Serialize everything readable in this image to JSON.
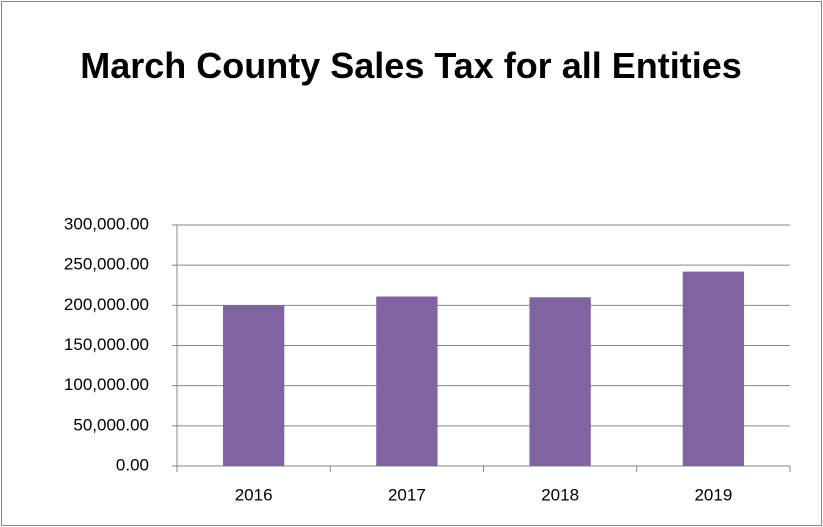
{
  "chart_data": {
    "type": "bar",
    "title": "March County Sales Tax for all Entities",
    "categories": [
      "2016",
      "2017",
      "2018",
      "2019"
    ],
    "values": [
      200000,
      211000,
      210000,
      242000
    ],
    "color": "#8064a2",
    "ylim": [
      0,
      300000
    ],
    "yticks": [
      {
        "value": 0,
        "label": "0.00"
      },
      {
        "value": 50000,
        "label": "50,000.00"
      },
      {
        "value": 100000,
        "label": "100,000.00"
      },
      {
        "value": 150000,
        "label": "150,000.00"
      },
      {
        "value": 200000,
        "label": "200,000.00"
      },
      {
        "value": 250000,
        "label": "250,000.00"
      },
      {
        "value": 300000,
        "label": "300,000.00"
      }
    ],
    "grid": true
  }
}
